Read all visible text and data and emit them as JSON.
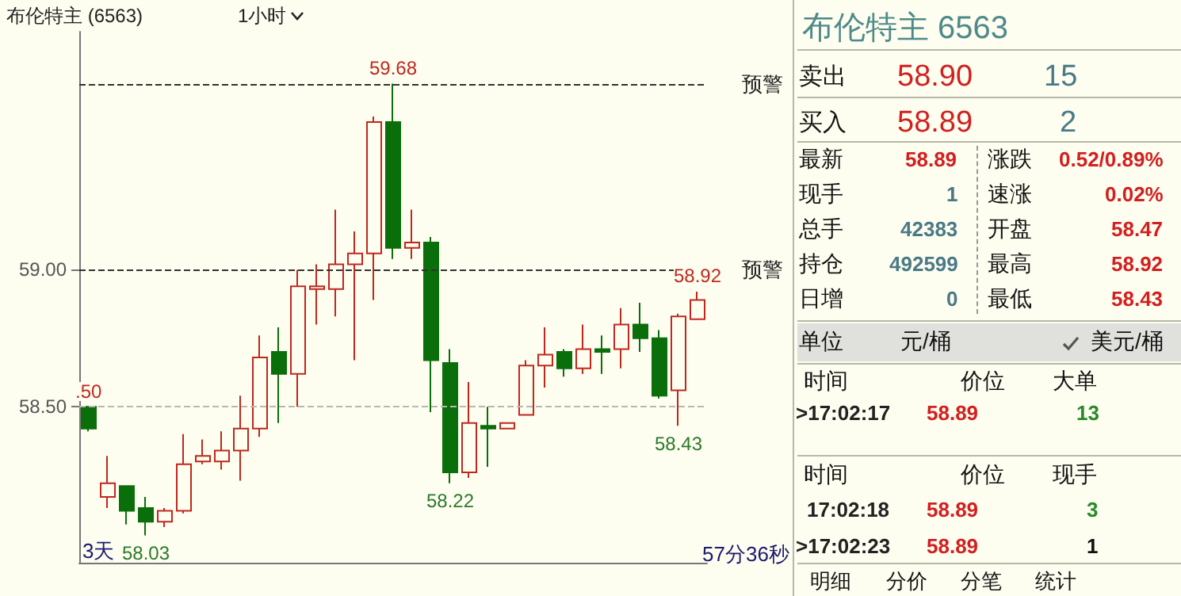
{
  "chart_data": [
    {
      "type": "candlestick",
      "title": "布伦特主 (6563)",
      "subtitle": "1小时",
      "categories": [
        null,
        null,
        null,
        null,
        null,
        null,
        null,
        null,
        null,
        null,
        null,
        null,
        null,
        null,
        null,
        null,
        null,
        null,
        null,
        null,
        null,
        null,
        null,
        null,
        null,
        null,
        null,
        null,
        null,
        null,
        null,
        null,
        null
      ],
      "ohlc": [
        [
          58.5,
          58.5,
          58.41,
          58.42
        ],
        [
          58.17,
          58.32,
          58.13,
          58.22
        ],
        [
          58.21,
          58.21,
          58.07,
          58.12
        ],
        [
          58.13,
          58.17,
          58.03,
          58.08
        ],
        [
          58.08,
          58.13,
          58.06,
          58.12
        ],
        [
          58.12,
          58.4,
          58.11,
          58.29
        ],
        [
          58.3,
          58.38,
          58.29,
          58.32
        ],
        [
          58.3,
          58.41,
          58.27,
          58.34
        ],
        [
          58.34,
          58.54,
          58.23,
          58.42
        ],
        [
          58.42,
          58.76,
          58.39,
          58.68
        ],
        [
          58.7,
          58.79,
          58.44,
          58.62
        ],
        [
          58.62,
          59.0,
          58.5,
          58.94
        ],
        [
          58.93,
          59.02,
          58.8,
          58.94
        ],
        [
          58.93,
          59.22,
          58.83,
          59.02
        ],
        [
          59.02,
          59.14,
          58.67,
          59.06
        ],
        [
          59.06,
          59.56,
          58.89,
          59.54
        ],
        [
          59.54,
          59.68,
          59.04,
          59.08
        ],
        [
          59.08,
          59.22,
          59.04,
          59.1
        ],
        [
          59.1,
          59.12,
          58.48,
          58.67
        ],
        [
          58.66,
          58.71,
          58.22,
          58.26
        ],
        [
          58.26,
          58.59,
          58.24,
          58.44
        ],
        [
          58.43,
          58.5,
          58.28,
          58.42
        ],
        [
          58.42,
          58.44,
          58.42,
          58.44
        ],
        [
          58.47,
          58.67,
          58.47,
          58.65
        ],
        [
          58.65,
          58.79,
          58.57,
          58.69
        ],
        [
          58.7,
          58.71,
          58.61,
          58.64
        ],
        [
          58.64,
          58.8,
          58.62,
          58.71
        ],
        [
          58.71,
          58.76,
          58.62,
          58.7
        ],
        [
          58.71,
          58.86,
          58.64,
          58.8
        ],
        [
          58.8,
          58.88,
          58.7,
          58.75
        ],
        [
          58.75,
          58.78,
          58.53,
          58.54
        ],
        [
          58.56,
          58.84,
          58.43,
          58.83
        ],
        [
          58.82,
          58.92,
          58.82,
          58.89
        ]
      ],
      "colors": [
        "#0a6e0a",
        "#c0281e",
        "#0a6e0a",
        "#0a6e0a",
        "#c0281e",
        "#c0281e",
        "#c0281e",
        "#c0281e",
        "#c0281e",
        "#c0281e",
        "#0a6e0a",
        "#c0281e",
        "#c0281e",
        "#c0281e",
        "#c0281e",
        "#c0281e",
        "#0a6e0a",
        "#c0281e",
        "#0a6e0a",
        "#0a6e0a",
        "#c0281e",
        "#0a6e0a",
        "#c0281e",
        "#c0281e",
        "#c0281e",
        "#0a6e0a",
        "#c0281e",
        "#0a6e0a",
        "#c0281e",
        "#0a6e0a",
        "#0a6e0a",
        "#c0281e",
        "#c0281e"
      ],
      "ylim": [
        57.93,
        59.87
      ],
      "yticks": [
        {
          "value": 58.5,
          "label": "58.50"
        },
        {
          "value": 59,
          "label": "59.00"
        }
      ],
      "tick_labels": "y",
      "ref_lines": [
        {
          "axis": "y",
          "value": 59.68,
          "label": "预警",
          "color": "#333333",
          "line_style": "dashed"
        },
        {
          "axis": "y",
          "value": 59,
          "label": "预警",
          "color": "#333333",
          "line_style": "dashed"
        },
        {
          "axis": "y",
          "value": 58.5,
          "color": "#b8b8b0",
          "line_style": "dashed"
        }
      ],
      "annotations": [
        {
          "text": ".50",
          "y": 58.5
        },
        {
          "text": "59.68",
          "y": 59.68
        },
        {
          "text": "58.03",
          "y": 58.03
        },
        {
          "text": "58.22",
          "y": 58.22
        },
        {
          "text": "58.43",
          "y": 58.43
        },
        {
          "text": "58.92",
          "y": 58.92
        },
        "3天",
        "57分36秒"
      ]
    },
    {
      "type": "other",
      "title": "布伦特主 6563",
      "annotations": [
        "卖出",
        "58.90",
        "15",
        "买入",
        "58.89",
        "2",
        "最新",
        "58.89",
        "涨跌",
        "0.52/0.89%",
        "现手",
        "1",
        "速涨",
        "0.02%",
        "总手",
        "42383",
        "开盘",
        "58.47",
        "持仓",
        "492599",
        "最高",
        "58.92",
        "日增",
        "0",
        "最低",
        "58.43",
        "单位",
        "元/桶",
        "美元/桶",
        "时间",
        "价位",
        "大单",
        ">17:02:17",
        "58.89",
        "13",
        "时间",
        "价位",
        "现手",
        "17:02:18",
        "58.89",
        "3",
        ">17:02:23",
        "58.89",
        "1",
        "明细",
        "分价",
        "分笔",
        "统计"
      ]
    }
  ]
}
